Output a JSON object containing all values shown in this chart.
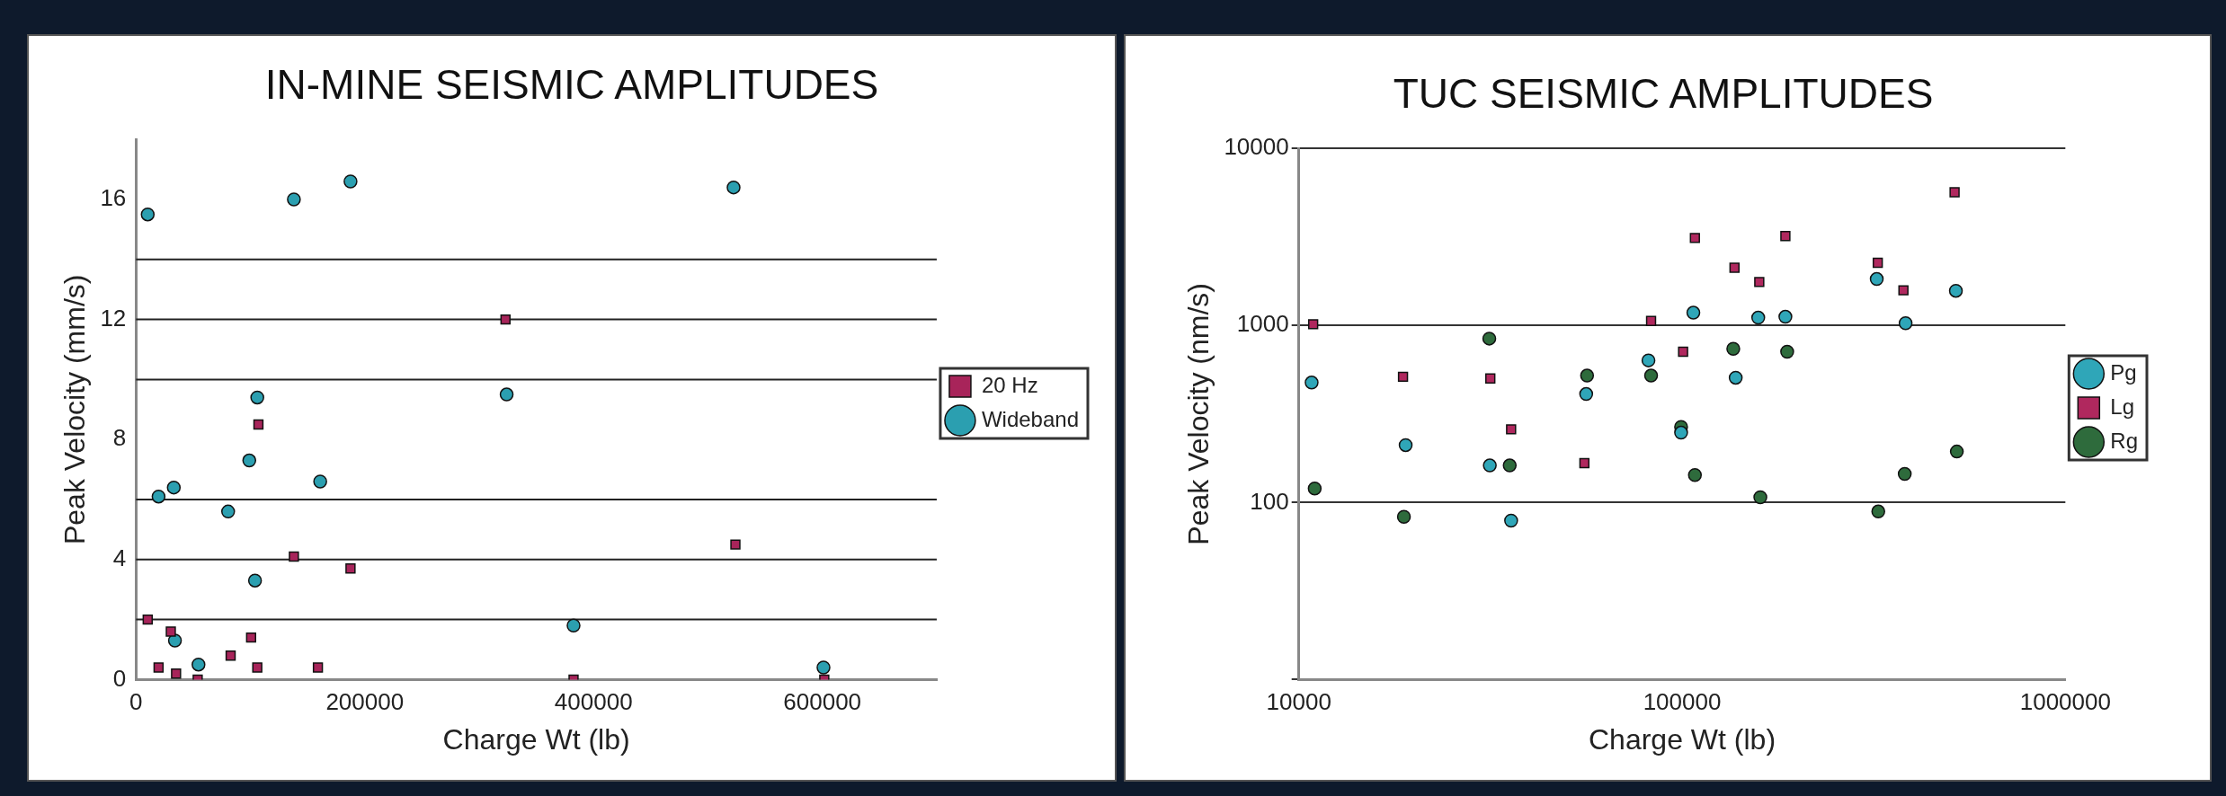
{
  "chart_data": [
    {
      "type": "scatter",
      "title": "IN-MINE SEISMIC AMPLITUDES",
      "xlabel": "Charge Wt (lb)",
      "ylabel": "Peak Velocity (mm/s)",
      "xlim": [
        0,
        700000
      ],
      "xticks": [
        0,
        200000,
        400000,
        600000
      ],
      "ylim": [
        0,
        18
      ],
      "yticks": [
        0,
        4,
        8,
        12,
        16
      ],
      "grid": false,
      "legend": "right",
      "ref_lines": [
        {
          "axis": "y",
          "value": 2,
          "color": "#222222"
        },
        {
          "axis": "y",
          "value": 4,
          "color": "#222222"
        },
        {
          "axis": "y",
          "value": 6,
          "color": "#222222"
        },
        {
          "axis": "y",
          "value": 10,
          "color": "#222222"
        },
        {
          "axis": "y",
          "value": 12,
          "color": "#222222"
        },
        {
          "axis": "y",
          "value": 14,
          "color": "#222222"
        }
      ],
      "series": [
        {
          "name": "20 Hz",
          "color": "#a8245a",
          "marker": "square",
          "x": [
            10200,
            30400,
            19700,
            35000,
            53900,
            82700,
            100600,
            106000,
            107000,
            138000,
            159000,
            187500,
            323000,
            382500,
            524000,
            601700
          ],
          "values": [
            2.0,
            1.6,
            0.4,
            0.2,
            0.0,
            0.8,
            1.4,
            0.4,
            8.5,
            4.1,
            0.4,
            3.7,
            12.0,
            0.0,
            4.5,
            0.0
          ]
        },
        {
          "name": "Wideband",
          "color": "#2b9fb0",
          "marker": "circle",
          "x": [
            10200,
            138000,
            187500,
            106000,
            99000,
            161000,
            19700,
            33000,
            80500,
            104000,
            34000,
            54600,
            324000,
            382500,
            522400,
            601000
          ],
          "values": [
            15.5,
            16.0,
            16.6,
            9.4,
            7.3,
            6.6,
            6.1,
            6.4,
            5.6,
            3.3,
            1.3,
            0.5,
            9.5,
            1.8,
            16.4,
            0.4
          ]
        }
      ]
    },
    {
      "type": "scatter",
      "title": "TUC SEISMIC AMPLITUDES",
      "xlabel": "Charge Wt (lb)",
      "ylabel": "Peak Velocity (nm/s)",
      "log": "xy",
      "xlim": [
        10000,
        1000000
      ],
      "xticks": [
        10000,
        100000,
        1000000
      ],
      "ylim": [
        10,
        10000
      ],
      "yticks": [
        {
          "value": 10,
          "label": null
        },
        100,
        1000,
        10000
      ],
      "grid": "y",
      "legend": "right",
      "series": [
        {
          "name": "Pg",
          "color": "#2fa6b8",
          "marker": "circle",
          "x": [
            10800,
            19000,
            31500,
            35800,
            56200,
            81700,
            99400,
            107000,
            138000,
            158000,
            186000,
            322000,
            383000,
            518000
          ],
          "values": [
            476,
            211,
            162,
            79,
            410,
            635,
            248,
            1180,
            507,
            1107,
            1120,
            1830,
            1030,
            1570
          ]
        },
        {
          "name": "Lg",
          "color": "#b0285e",
          "marker": "square",
          "x": [
            10900,
            18700,
            31600,
            35800,
            55600,
            83000,
            100600,
            108000,
            137000,
            159000,
            186000,
            324000,
            378000,
            514000
          ],
          "values": [
            1016,
            513,
            502,
            259,
            167,
            1060,
            711,
            3120,
            2120,
            1760,
            3200,
            2260,
            1580,
            5650
          ]
        },
        {
          "name": "Rg",
          "color": "#2e6b3c",
          "marker": "circle",
          "x": [
            11000,
            18800,
            31400,
            35500,
            56500,
            83000,
            99400,
            108000,
            136000,
            160000,
            188000,
            325000,
            381000,
            521000
          ],
          "values": [
            120,
            83,
            843,
            162,
            521,
            521,
            267,
            143,
            738,
            107,
            711,
            89,
            145,
            194
          ]
        }
      ]
    }
  ]
}
